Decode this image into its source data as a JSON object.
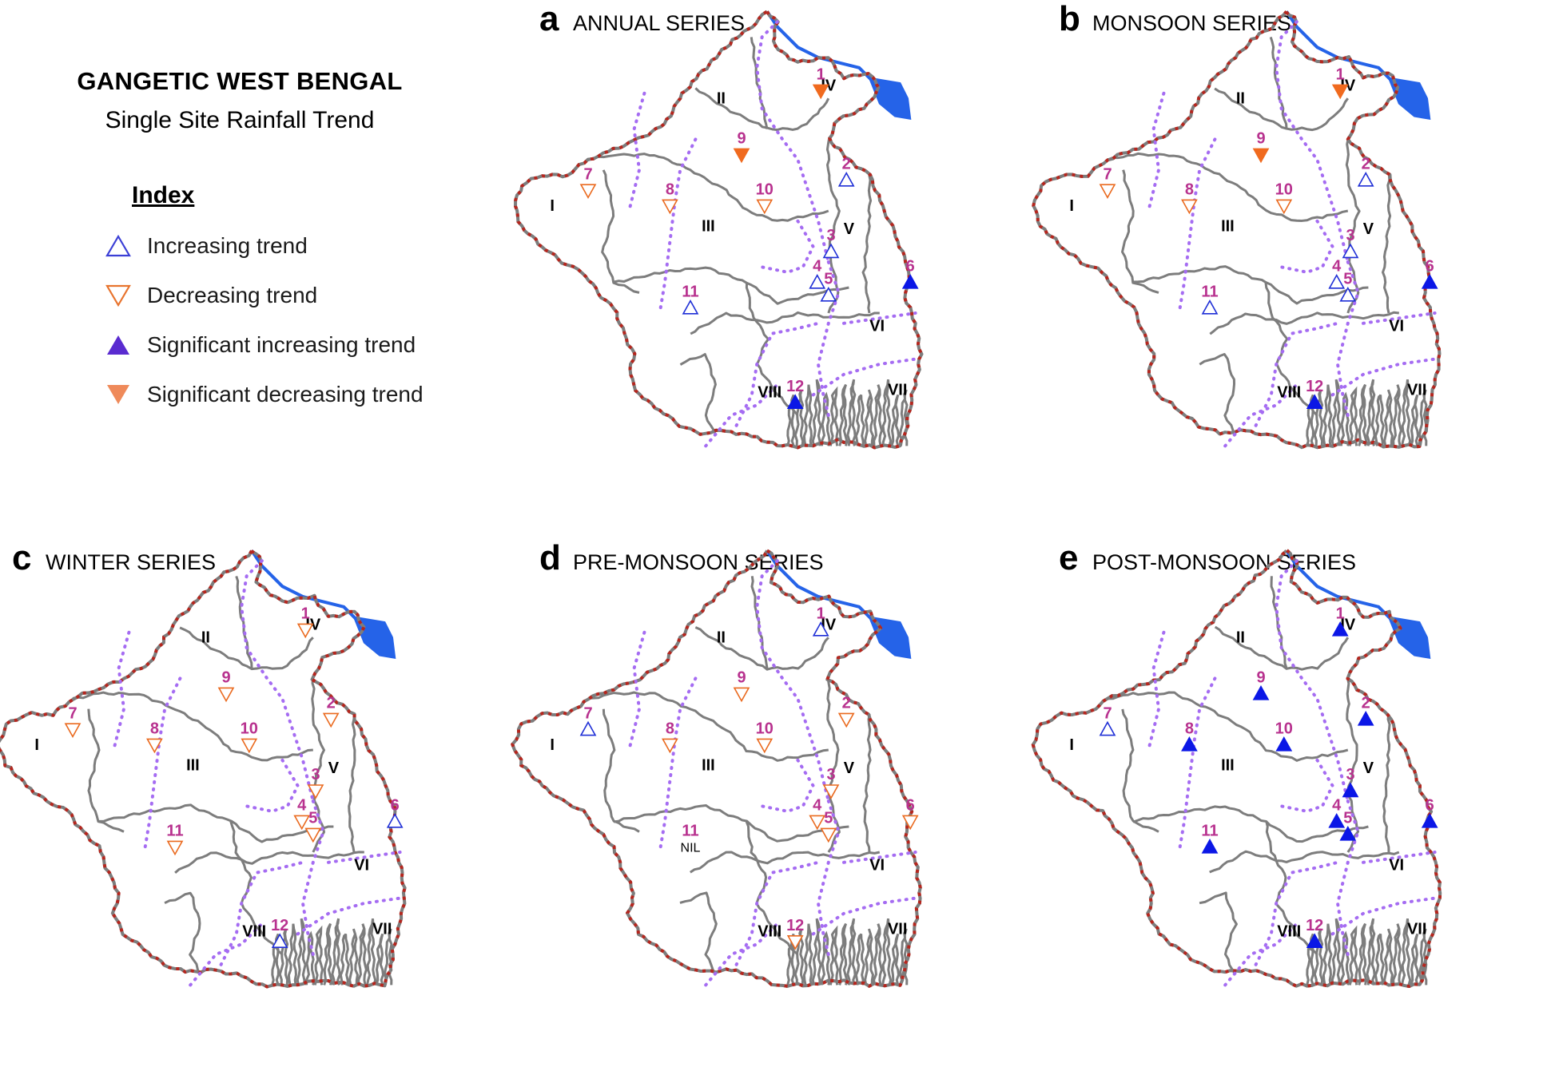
{
  "figure": {
    "title": "GANGETIC WEST BENGAL",
    "subtitle": "Single Site Rainfall Trend",
    "legend": {
      "heading": "Index",
      "items": [
        {
          "key": "inc",
          "label": "Increasing trend",
          "marker": "triangle-up-outline",
          "color": "#3b3fd6"
        },
        {
          "key": "dec",
          "label": "Decreasing trend",
          "marker": "triangle-down-outline",
          "color": "#e8742e"
        },
        {
          "key": "sinc",
          "label": "Significant increasing trend",
          "marker": "triangle-up-filled",
          "color": "#5a2bd0"
        },
        {
          "key": "sdec",
          "label": "Significant decreasing trend",
          "marker": "triangle-down-filled",
          "color": "#ef8a5a"
        }
      ]
    },
    "colors": {
      "boundary_red": "#b5261e",
      "boundary_gray": "#7d7d7d",
      "zone_dotted": "#a56cf2",
      "river": "#2563e8",
      "station_label": "#b8328f",
      "inc": "#1f2fd6",
      "dec": "#ea6a1f",
      "sinc": "#0b17e6",
      "sdec": "#f06a1e"
    },
    "zones": [
      "I",
      "II",
      "III",
      "IV",
      "V",
      "VI",
      "VII",
      "VIII"
    ],
    "panels": [
      {
        "letter": "a",
        "title": "ANNUAL SERIES",
        "stations": {
          "1": "sdec",
          "2": "inc",
          "3": "inc",
          "4": "inc",
          "5": "inc",
          "6": "sinc",
          "7": "dec",
          "8": "dec",
          "9": "sdec",
          "10": "dec",
          "11": "inc",
          "12": "sinc"
        }
      },
      {
        "letter": "b",
        "title": "MONSOON SERIES",
        "stations": {
          "1": "sdec",
          "2": "inc",
          "3": "inc",
          "4": "inc",
          "5": "inc",
          "6": "sinc",
          "7": "dec",
          "8": "dec",
          "9": "sdec",
          "10": "dec",
          "11": "inc",
          "12": "sinc"
        }
      },
      {
        "letter": "c",
        "title": "WINTER SERIES",
        "stations": {
          "1": "dec",
          "2": "dec",
          "3": "dec",
          "4": "dec",
          "5": "dec",
          "6": "inc",
          "7": "dec",
          "8": "dec",
          "9": "dec",
          "10": "dec",
          "11": "dec",
          "12": "inc"
        }
      },
      {
        "letter": "d",
        "title": "PRE-MONSOON SERIES",
        "stations": {
          "1": "inc",
          "2": "dec",
          "3": "dec",
          "4": "dec",
          "5": "dec",
          "6": "dec",
          "7": "inc",
          "8": "dec",
          "9": "dec",
          "10": "dec",
          "11": "nil",
          "12": "dec"
        },
        "nil_label": "NIL"
      },
      {
        "letter": "e",
        "title": "POST-MONSOON SERIES",
        "stations": {
          "1": "sinc",
          "2": "sinc",
          "3": "sinc",
          "4": "sinc",
          "5": "sinc",
          "6": "sinc",
          "7": "inc",
          "8": "sinc",
          "9": "sinc",
          "10": "sinc",
          "11": "sinc",
          "12": "sinc"
        }
      }
    ]
  }
}
